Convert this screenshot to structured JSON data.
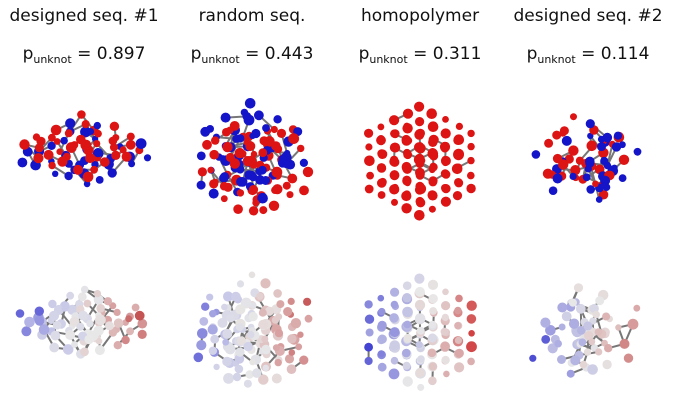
{
  "columns": [
    {
      "title": "designed seq. #1",
      "p_symbol": "p",
      "p_sub": "unknot",
      "p_eq": "=",
      "p_value": "0.897",
      "top_colors": [
        "#1414c8",
        "#dd1414"
      ],
      "bottom_colors": [
        "#2a2ad0",
        "#c8c8e8",
        "#e8e8e8",
        "#d8a0a0",
        "#c04040"
      ]
    },
    {
      "title": "random seq.",
      "p_symbol": "p",
      "p_sub": "unknot",
      "p_eq": "=",
      "p_value": "0.443",
      "top_colors": [
        "#1414c8",
        "#dd1414"
      ],
      "bottom_colors": [
        "#2a2ad0",
        "#c8c8e8",
        "#e8e8e8",
        "#d8a0a0",
        "#c04040"
      ]
    },
    {
      "title": "homopolymer",
      "p_symbol": "p",
      "p_sub": "unknot",
      "p_eq": "=",
      "p_value": "0.311",
      "top_colors": [
        "#dd1414"
      ],
      "bottom_colors": [
        "#3030d0",
        "#a0a0e0",
        "#e8e8e8",
        "#d8a0a0",
        "#d02020"
      ]
    },
    {
      "title": "designed seq. #2",
      "p_symbol": "p",
      "p_sub": "unknot",
      "p_eq": "=",
      "p_value": "0.114",
      "top_colors": [
        "#1414c8",
        "#dd1414"
      ],
      "bottom_colors": [
        "#4040d0",
        "#a0a0e0",
        "#e8e8e8",
        "#d8a0a0",
        "#c04040"
      ]
    }
  ]
}
